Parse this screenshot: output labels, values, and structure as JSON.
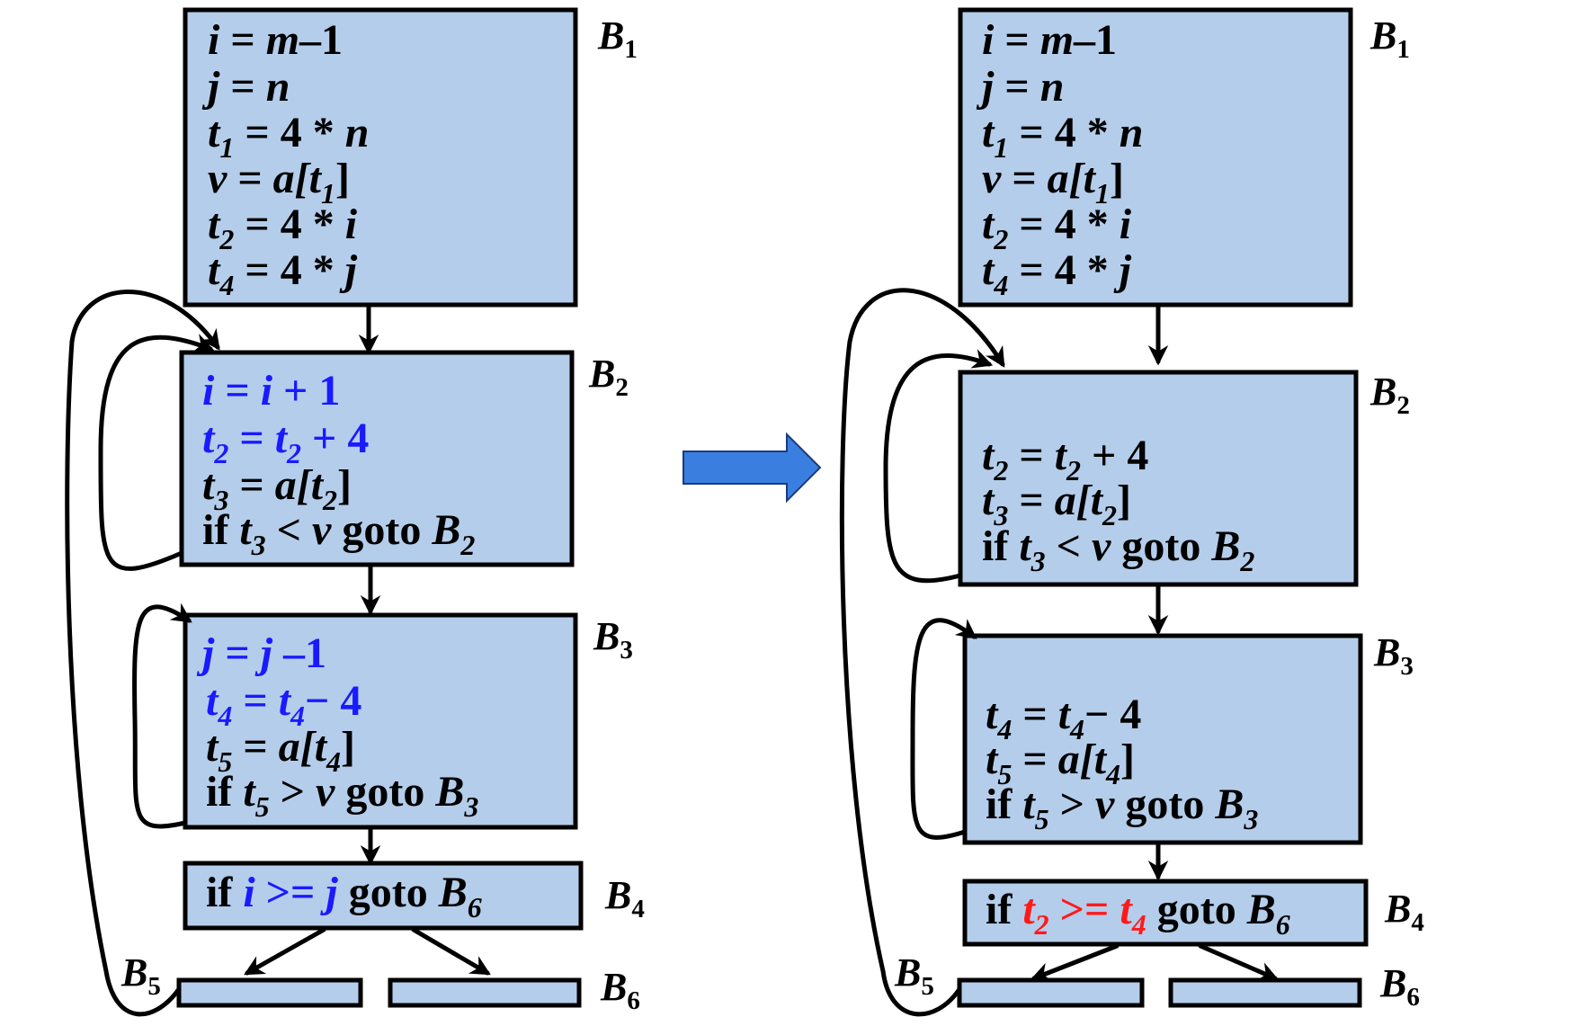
{
  "left": {
    "b1": {
      "label": {
        "main": "B",
        "sub": "1"
      },
      "lines": [
        {
          "lhs": "i",
          "lhs_sub": "",
          "rhs": "m",
          "rhs_tail": "–1"
        },
        {
          "lhs": "j",
          "lhs_sub": "",
          "rhs": "n",
          "rhs_tail": ""
        },
        {
          "lhs": "t",
          "lhs_sub": "1",
          "rhs_pre": "4 * ",
          "rhs": "n"
        },
        {
          "lhs": "v",
          "lhs_sub": "",
          "rhs": "a[t",
          "rhs_sub": "1",
          "rhs_close": "]"
        },
        {
          "lhs": "t",
          "lhs_sub": "2",
          "rhs_pre": "4 * ",
          "rhs": "i"
        },
        {
          "lhs": "t",
          "lhs_sub": "4",
          "rhs_pre": "4 * ",
          "rhs": "j"
        }
      ]
    },
    "b2": {
      "label": {
        "main": "B",
        "sub": "2"
      },
      "line1": {
        "lhs": "i",
        "rhs": "i",
        "tail": " + 1"
      },
      "line2": {
        "lhs": "t",
        "lhs_sub": "2",
        "rhs": "t",
        "rhs_sub": "2",
        "tail": " + 4"
      },
      "line3": {
        "lhs": "t",
        "lhs_sub": "3",
        "rhs": "a[t",
        "rhs_sub": "2",
        "close": "]"
      },
      "line4": {
        "kw": "if ",
        "var": "t",
        "var_sub": "3",
        "op": " < ",
        "v": "v",
        "goto": " goto ",
        "target": "B",
        "target_sub": "2"
      }
    },
    "b3": {
      "label": {
        "main": "B",
        "sub": "3"
      },
      "line1": {
        "lhs": "j",
        "rhs": "j",
        "tail": " –1"
      },
      "line2": {
        "lhs": "t",
        "lhs_sub": "4",
        "rhs": "t",
        "rhs_sub": "4",
        "tail": "−  4"
      },
      "line3": {
        "lhs": "t",
        "lhs_sub": "5",
        "rhs": "a[t",
        "rhs_sub": "4",
        "close": "]"
      },
      "line4": {
        "kw": "if ",
        "var": "t",
        "var_sub": "5",
        "op": " > ",
        "v": "v",
        "goto": " goto ",
        "target": "B",
        "target_sub": "3"
      }
    },
    "b4": {
      "label": {
        "main": "B",
        "sub": "4"
      },
      "line": {
        "kw": "if ",
        "a": "i",
        "op": " >= ",
        "b": "j",
        "goto": " goto ",
        "target": "B",
        "target_sub": "6"
      }
    },
    "b5": {
      "label": {
        "main": "B",
        "sub": "5"
      }
    },
    "b6": {
      "label": {
        "main": "B",
        "sub": "6"
      }
    }
  },
  "right": {
    "b1": {
      "label": {
        "main": "B",
        "sub": "1"
      }
    },
    "b2": {
      "label": {
        "main": "B",
        "sub": "2"
      },
      "line2": {
        "lhs": "t",
        "lhs_sub": "2",
        "rhs": "t",
        "rhs_sub": "2",
        "tail": " + 4"
      },
      "line3": {
        "lhs": "t",
        "lhs_sub": "3",
        "rhs": "a[t",
        "rhs_sub": "2",
        "close": "]"
      },
      "line4": {
        "kw": "if ",
        "var": "t",
        "var_sub": "3",
        "op": " < ",
        "v": "v",
        "goto": " goto ",
        "target": "B",
        "target_sub": "2"
      }
    },
    "b3": {
      "label": {
        "main": "B",
        "sub": "3"
      },
      "line2": {
        "lhs": "t",
        "lhs_sub": "4",
        "rhs": "t",
        "rhs_sub": "4",
        "tail": "−  4"
      },
      "line3": {
        "lhs": "t",
        "lhs_sub": "5",
        "rhs": "a[t",
        "rhs_sub": "4",
        "close": "]"
      },
      "line4": {
        "kw": "if ",
        "var": "t",
        "var_sub": "5",
        "op": " > ",
        "v": "v",
        "goto": " goto ",
        "target": "B",
        "target_sub": "3"
      }
    },
    "b4": {
      "label": {
        "main": "B",
        "sub": "4"
      },
      "line": {
        "kw": "if ",
        "a": "t",
        "a_sub": "2",
        "op": " >= ",
        "b": "t",
        "b_sub": "4",
        "goto": " goto ",
        "target": "B",
        "target_sub": "6"
      }
    },
    "b5": {
      "label": {
        "main": "B",
        "sub": "5"
      }
    },
    "b6": {
      "label": {
        "main": "B",
        "sub": "6"
      }
    }
  },
  "colors": {
    "block_fill": "#b4cdea",
    "changed_text": "#1a1aff",
    "new_test_text": "#ff1a1a",
    "transform_arrow": "#3a7fe0"
  }
}
